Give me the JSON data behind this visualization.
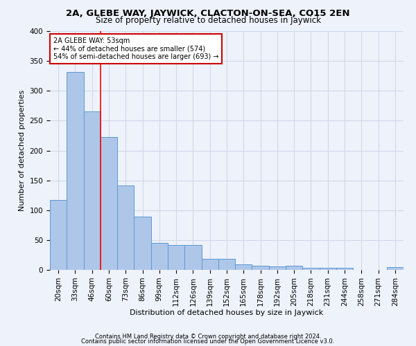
{
  "title1": "2A, GLEBE WAY, JAYWICK, CLACTON-ON-SEA, CO15 2EN",
  "title2": "Size of property relative to detached houses in Jaywick",
  "xlabel": "Distribution of detached houses by size in Jaywick",
  "ylabel": "Number of detached properties",
  "footer1": "Contains HM Land Registry data © Crown copyright and database right 2024.",
  "footer2": "Contains public sector information licensed under the Open Government Licence v3.0.",
  "categories": [
    "20sqm",
    "33sqm",
    "46sqm",
    "60sqm",
    "73sqm",
    "86sqm",
    "99sqm",
    "112sqm",
    "126sqm",
    "139sqm",
    "152sqm",
    "165sqm",
    "178sqm",
    "192sqm",
    "205sqm",
    "218sqm",
    "231sqm",
    "244sqm",
    "258sqm",
    "271sqm",
    "284sqm"
  ],
  "values": [
    117,
    332,
    265,
    223,
    142,
    89,
    45,
    42,
    42,
    18,
    18,
    9,
    7,
    6,
    7,
    4,
    3,
    4,
    0,
    0,
    5
  ],
  "bar_color": "#aec6e8",
  "bar_edge_color": "#5b9bd5",
  "grid_color": "#d0d8e8",
  "background_color": "#eef2fa",
  "red_line_x": 2.5,
  "annotation_line1": "2A GLEBE WAY: 53sqm",
  "annotation_line2": "← 44% of detached houses are smaller (574)",
  "annotation_line3": "54% of semi-detached houses are larger (693) →",
  "annotation_box_color": "#ffffff",
  "annotation_box_edge": "#cc0000",
  "ylim": [
    0,
    400
  ],
  "yticks": [
    0,
    50,
    100,
    150,
    200,
    250,
    300,
    350,
    400
  ],
  "title1_fontsize": 9.5,
  "title2_fontsize": 8.5,
  "xlabel_fontsize": 8,
  "ylabel_fontsize": 8,
  "footer_fontsize": 6,
  "tick_fontsize": 7.5,
  "annot_fontsize": 7
}
